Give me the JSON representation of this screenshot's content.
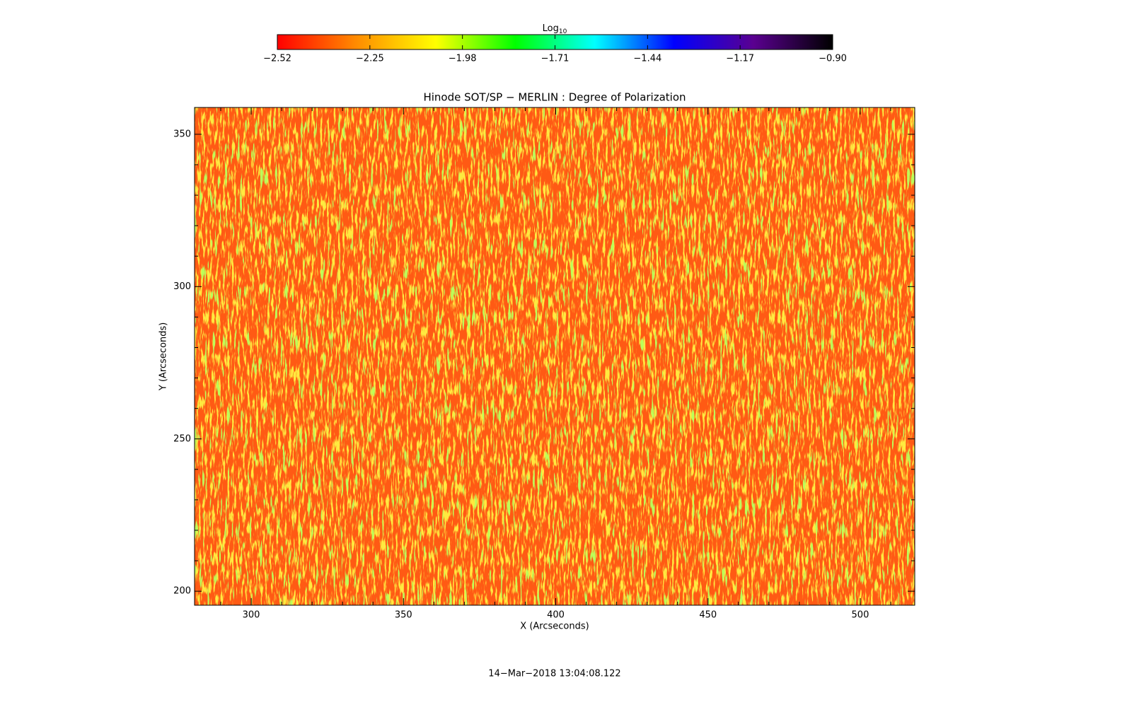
{
  "chart_data": {
    "type": "heatmap",
    "title": "Hinode SOT/SP − MERLIN : Degree of Polarization",
    "xlabel": "X (Arcseconds)",
    "ylabel": "Y (Arcseconds)",
    "xlim": [
      281.4,
      517.9
    ],
    "ylim": [
      195.4,
      358.8
    ],
    "xticks": [
      300,
      350,
      400,
      450,
      500
    ],
    "yticks": [
      200,
      250,
      300,
      350
    ],
    "xminorticks": [
      290,
      310,
      320,
      330,
      340,
      360,
      370,
      380,
      390,
      410,
      420,
      430,
      440,
      460,
      470,
      480,
      490,
      510
    ],
    "yminorticks": [
      210,
      220,
      230,
      240,
      260,
      270,
      280,
      290,
      310,
      320,
      330,
      340
    ],
    "colorbar": {
      "label": "Log",
      "label_subscript": "10",
      "clim": [
        -2.52,
        -0.9
      ],
      "colormap": [
        "#ff0000",
        "#ff8c00",
        "#ffff00",
        "#00ff00",
        "#00ffff",
        "#0000ff",
        "#5a0090",
        "#000000"
      ],
      "ticks": [
        {
          "value": -2.52,
          "label": "−2.52"
        },
        {
          "value": -2.25,
          "label": "−2.25"
        },
        {
          "value": -1.98,
          "label": "−1.98"
        },
        {
          "value": -1.71,
          "label": "−1.71"
        },
        {
          "value": -1.44,
          "label": "−1.44"
        },
        {
          "value": -1.17,
          "label": "−1.17"
        },
        {
          "value": -0.9,
          "label": "−0.90"
        }
      ]
    },
    "footer": "14−Mar−2018 13:04:08.122"
  }
}
